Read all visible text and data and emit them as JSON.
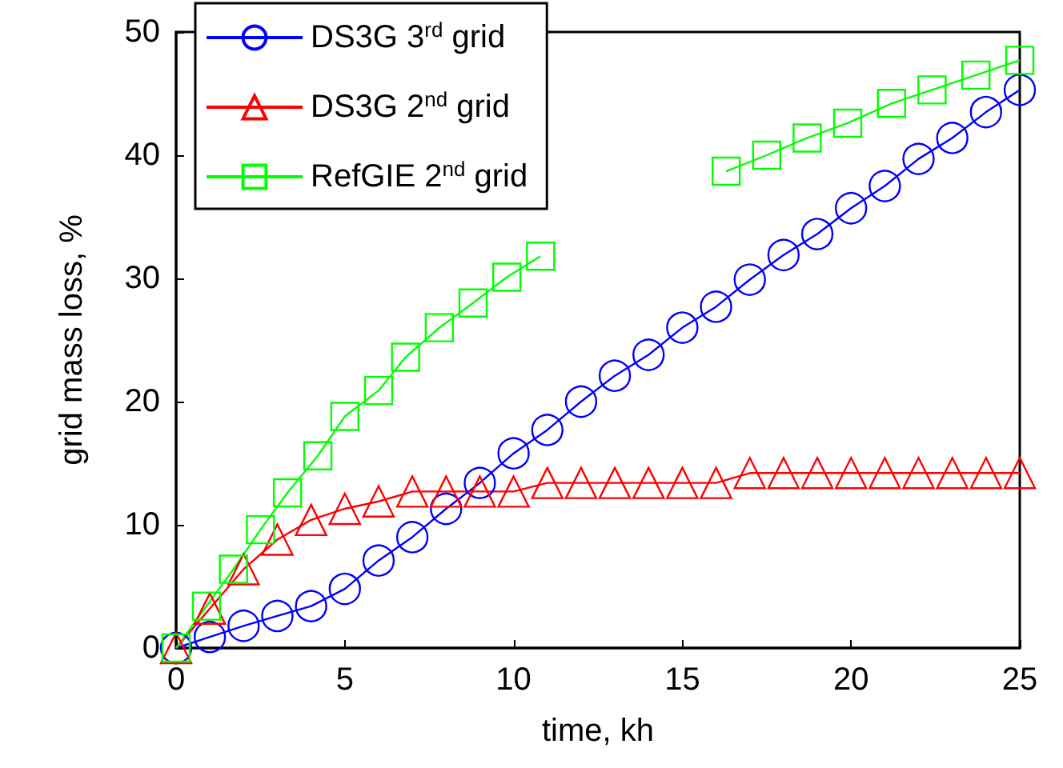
{
  "chart_data": {
    "type": "line",
    "xlabel": "time, kh",
    "ylabel": "grid mass loss, %",
    "xlim": [
      0,
      25
    ],
    "xticks": [
      0,
      5,
      10,
      15,
      20,
      25
    ],
    "ylim": [
      0,
      50
    ],
    "yticks": [
      0,
      10,
      20,
      30,
      40,
      50
    ],
    "grid": false,
    "legend": "top left",
    "line_style": "solid",
    "x": [
      0,
      1,
      2,
      3,
      4,
      5,
      6,
      7,
      8,
      9,
      10,
      11,
      12,
      13,
      14,
      15,
      16,
      17,
      18,
      19,
      20,
      21,
      22,
      23,
      24,
      25
    ],
    "series": [
      {
        "name": "DS3G 3$^{rd}$ grid",
        "color": "#0000ff",
        "marker": "circle",
        "values": [
          0,
          0.9,
          1.8,
          2.6,
          3.4,
          4.8,
          7.1,
          9.0,
          11.3,
          13.4,
          15.8,
          17.7,
          20.0,
          22.1,
          23.8,
          26.0,
          27.7,
          29.9,
          31.9,
          33.6,
          35.7,
          37.5,
          39.7,
          41.4,
          43.5,
          45.3
        ]
      },
      {
        "name": "DS3G 2$^{nd}$ grid",
        "color": "#ff0000",
        "marker": "triangle",
        "values": [
          0,
          3.2,
          6.4,
          8.8,
          10.4,
          11.3,
          11.9,
          12.7,
          12.7,
          12.7,
          12.7,
          13.4,
          13.4,
          13.4,
          13.4,
          13.4,
          13.4,
          14.2,
          14.2,
          14.2,
          14.2,
          14.2,
          14.2,
          14.2,
          14.2,
          14.2
        ]
      },
      {
        "name": "RefGIE 2$^{nd}$ grid",
        "color": "#00ff00",
        "marker": "square",
        "x": [
          0,
          0.9,
          1.7,
          2.5,
          3.3,
          4.2,
          5,
          6,
          6.8,
          7.8,
          8.8,
          9.8,
          10.8,
          13.5,
          16.3,
          17.5,
          18.7,
          19.9,
          21.2,
          22.4,
          23.7,
          25
        ],
        "values": [
          0,
          3.4,
          6.4,
          9.6,
          12.6,
          15.6,
          18.8,
          20.9,
          23.6,
          26.0,
          28.0,
          30.1,
          31.8,
          null,
          38.7,
          40.0,
          41.4,
          42.6,
          44.2,
          45.3,
          46.5,
          47.7
        ]
      }
    ]
  }
}
